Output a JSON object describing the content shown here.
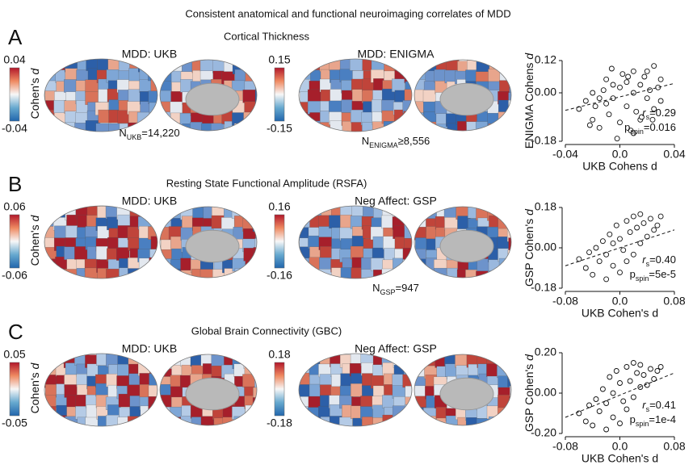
{
  "title": "Consistent anatomical and functional neuroimaging correlates of MDD",
  "panels": [
    {
      "letter": "A",
      "title": "Cortical Thickness",
      "colorbar_label": "Cohen's",
      "colorbar_label_italic": "d",
      "maps": [
        {
          "label": "MDD: UKB",
          "max": 0.04,
          "min": -0.04,
          "n": {
            "N": "N",
            "sub": "UKB",
            "text": "=14,220"
          }
        },
        {
          "label": "MDD: ENIGMA",
          "max": 0.15,
          "min": -0.15,
          "n": {
            "N": "N",
            "sub": "ENIGMA",
            "text": "≥8,556"
          }
        }
      ]
    },
    {
      "letter": "B",
      "title": "Resting State Functional Amplitude (RSFA)",
      "colorbar_label": "Cohen's",
      "colorbar_label_italic": "d",
      "maps": [
        {
          "label": "MDD: UKB",
          "max": 0.06,
          "min": -0.06
        },
        {
          "label": "Neg Affect: GSP",
          "max": 0.16,
          "min": -0.16,
          "n": {
            "N": "N",
            "sub": "GSP",
            "text": "=947"
          }
        }
      ]
    },
    {
      "letter": "C",
      "title": "Global Brain Connectivity (GBC)",
      "colorbar_label": "Cohen's",
      "colorbar_label_italic": "d",
      "maps": [
        {
          "label": "MDD: UKB",
          "max": 0.05,
          "min": -0.05
        },
        {
          "label": "Neg Affect: GSP",
          "max": 0.18,
          "min": -0.18
        }
      ]
    }
  ],
  "chart_data": [
    {
      "type": "scatter",
      "x_label": "UKB Cohens d",
      "y_label": "ENIGMA Cohens",
      "y_label_italic": "d",
      "xlim": [
        -0.04,
        0.04
      ],
      "xticks": [
        -0.04,
        {
          "value": 0,
          "label": "0.0"
        },
        0.04
      ],
      "ylim": [
        -0.18,
        0.12
      ],
      "yticks": [
        -0.18,
        {
          "value": 0,
          "label": "0.00"
        },
        0.12
      ],
      "x": [
        -0.03,
        -0.025,
        -0.02,
        -0.02,
        -0.015,
        -0.015,
        -0.01,
        -0.01,
        -0.008,
        -0.005,
        -0.005,
        0.0,
        0.0,
        0.002,
        0.005,
        0.005,
        0.008,
        0.01,
        0.01,
        0.012,
        0.015,
        0.015,
        0.018,
        0.02,
        0.02,
        0.022,
        0.025,
        0.025,
        0.028,
        0.03,
        0.03,
        -0.018,
        -0.012,
        -0.002,
        0.006,
        0.016,
        -0.022,
        0.024,
        0.01,
        -0.006
      ],
      "y": [
        -0.06,
        -0.03,
        -0.1,
        0.0,
        -0.02,
        -0.13,
        -0.04,
        0.05,
        -0.08,
        -0.02,
        0.03,
        -0.11,
        0.02,
        0.07,
        -0.05,
        0.04,
        -0.14,
        0.0,
        0.08,
        -0.07,
        0.03,
        -0.1,
        0.06,
        -0.02,
        0.08,
        0.01,
        -0.06,
        0.1,
        0.02,
        0.05,
        -0.03,
        -0.05,
        0.01,
        -0.17,
        0.06,
        -0.09,
        -0.12,
        -0.1,
        -0.15,
        0.09
      ],
      "fit_x": [
        -0.04,
        0.04
      ],
      "fit_y": [
        -0.065,
        0.035
      ],
      "r_label": "r",
      "r_sub": "s",
      "r_value": "=0.29",
      "p_label": "p",
      "p_sub": "spin",
      "p_value": "=0.016"
    },
    {
      "type": "scatter",
      "x_label": "UKB Cohen's d",
      "y_label": "GSP Cohen's",
      "y_label_italic": "d",
      "xlim": [
        -0.08,
        0.08
      ],
      "xticks": [
        -0.08,
        {
          "value": 0,
          "label": "0.0"
        },
        0.08
      ],
      "ylim": [
        -0.18,
        0.18
      ],
      "yticks": [
        -0.18,
        {
          "value": 0,
          "label": "0.00"
        },
        0.18
      ],
      "x": [
        -0.06,
        -0.05,
        -0.045,
        -0.04,
        -0.035,
        -0.03,
        -0.025,
        -0.02,
        -0.02,
        -0.015,
        -0.01,
        -0.01,
        -0.005,
        0.0,
        0.0,
        0.005,
        0.01,
        0.01,
        0.015,
        0.02,
        0.02,
        0.025,
        0.03,
        0.03,
        0.035,
        0.04,
        0.045,
        0.05,
        0.055,
        0.06
      ],
      "y": [
        -0.05,
        -0.09,
        -0.02,
        -0.12,
        0.0,
        -0.06,
        0.03,
        -0.14,
        -0.03,
        0.06,
        -0.08,
        0.02,
        0.1,
        -0.11,
        0.04,
        -0.01,
        0.12,
        -0.06,
        0.07,
        0.14,
        -0.03,
        0.09,
        0.02,
        0.15,
        0.11,
        0.05,
        0.13,
        0.08,
        0.1,
        0.14
      ],
      "fit_x": [
        -0.08,
        0.08
      ],
      "fit_y": [
        -0.08,
        0.08
      ],
      "r_label": "r",
      "r_sub": "s",
      "r_value": "=0.40",
      "p_label": "p",
      "p_sub": "spin",
      "p_value": "=5e-5"
    },
    {
      "type": "scatter",
      "x_label": "UKB Cohen's d",
      "y_label": "GSP Cohen's",
      "y_label_italic": "d",
      "xlim": [
        -0.08,
        0.08
      ],
      "xticks": [
        -0.08,
        {
          "value": 0,
          "label": "0.0"
        },
        0.08
      ],
      "ylim": [
        -0.2,
        0.2
      ],
      "yticks": [
        {
          "value": -0.2,
          "label": "-0.20"
        },
        {
          "value": 0,
          "label": "0.00"
        },
        {
          "value": 0.2,
          "label": "0.20"
        }
      ],
      "x": [
        -0.06,
        -0.05,
        -0.045,
        -0.04,
        -0.035,
        -0.03,
        -0.025,
        -0.02,
        -0.02,
        -0.015,
        -0.01,
        -0.01,
        -0.005,
        0.0,
        0.0,
        0.005,
        0.01,
        0.01,
        0.015,
        0.02,
        0.02,
        0.025,
        0.03,
        0.03,
        0.035,
        0.04,
        0.045,
        0.05,
        0.055,
        0.06
      ],
      "y": [
        -0.1,
        -0.14,
        -0.06,
        -0.16,
        -0.03,
        -0.09,
        0.02,
        -0.18,
        -0.05,
        0.08,
        -0.12,
        0.0,
        0.11,
        -0.15,
        0.05,
        -0.04,
        0.13,
        -0.08,
        0.06,
        0.15,
        -0.02,
        0.1,
        0.03,
        0.14,
        0.09,
        0.04,
        0.12,
        0.07,
        0.11,
        0.13
      ],
      "fit_x": [
        -0.08,
        0.08
      ],
      "fit_y": [
        -0.12,
        0.1
      ],
      "r_label": "r",
      "r_sub": "s",
      "r_value": "=0.41",
      "p_label": "p",
      "p_sub": "spin",
      "p_value": "=1e-4"
    }
  ]
}
